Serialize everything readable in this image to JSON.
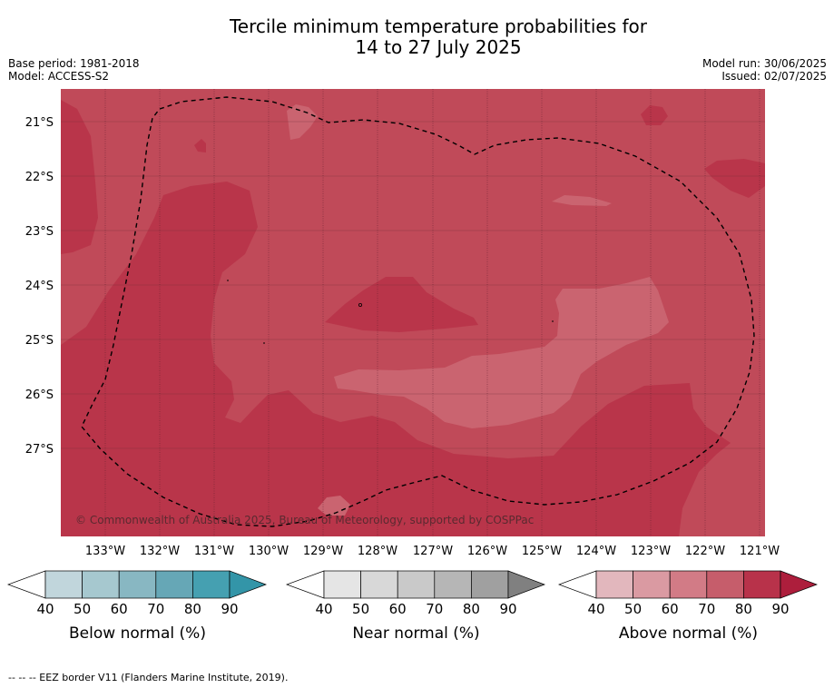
{
  "title": {
    "line1": "Tercile minimum temperature probabilities for",
    "line2": "14 to 27 July 2025"
  },
  "meta_left": {
    "base_period": "Base period: 1981-2018",
    "model": "Model: ACCESS-S2"
  },
  "meta_right": {
    "model_run": "Model run: 30/06/2025",
    "issued": "Issued: 02/07/2025"
  },
  "copyright": "© Commonwealth of Australia 2025, Bureau of Meteorology, supported by COSPPac",
  "footnote": "-- -- -- EEZ border V11 (Flanders Marine Institute, 2019).",
  "colors": {
    "above_70": "#c04a59",
    "above_80": "#bb3246",
    "above_60": "#c9616d",
    "above_50": "#cf7480",
    "grid": "#6b2030"
  },
  "chart_data": {
    "type": "heatmap",
    "title": "Tercile minimum temperature probabilities for 14 to 27 July 2025",
    "x_ticks": [
      "133°W",
      "132°W",
      "131°W",
      "130°W",
      "129°W",
      "128°W",
      "127°W",
      "126°W",
      "125°W",
      "124°W",
      "123°W",
      "122°W",
      "121°W"
    ],
    "y_ticks": [
      "21°S",
      "22°S",
      "23°S",
      "24°S",
      "25°S",
      "26°S",
      "27°S"
    ],
    "xlim": [
      -133.8,
      -120.9
    ],
    "ylim": [
      -28.6,
      -20.4
    ],
    "dominant_category": "Above normal",
    "dominant_probability_range_pct": [
      60,
      90
    ],
    "regions": [
      {
        "category": "Above normal",
        "probability_pct": "70-80",
        "extent": "most of the domain"
      },
      {
        "category": "Above normal",
        "probability_pct": "80-90",
        "extent": "west and south"
      },
      {
        "category": "Above normal",
        "probability_pct": "60-70",
        "extent": "central band near 25°S-26°S"
      }
    ],
    "grid": true
  },
  "colorbars": [
    {
      "id": "below",
      "label": "Below normal (%)",
      "ticks": [
        "40",
        "50",
        "60",
        "70",
        "80",
        "90"
      ],
      "colors": [
        "#c1d6dc",
        "#a6c8cf",
        "#88b7c2",
        "#66a7b6",
        "#45a0b1",
        "#3395a8"
      ]
    },
    {
      "id": "near",
      "label": "Near normal (%)",
      "ticks": [
        "40",
        "50",
        "60",
        "70",
        "80",
        "90"
      ],
      "colors": [
        "#e5e5e5",
        "#d8d8d8",
        "#c9c9c9",
        "#b6b6b6",
        "#a0a0a0",
        "#808080"
      ]
    },
    {
      "id": "above",
      "label": "Above normal (%)",
      "ticks": [
        "40",
        "50",
        "60",
        "70",
        "80",
        "90"
      ],
      "colors": [
        "#e2b7bd",
        "#da9aa2",
        "#d27b86",
        "#c65d6b",
        "#b8324a",
        "#ad1e3c"
      ]
    }
  ]
}
